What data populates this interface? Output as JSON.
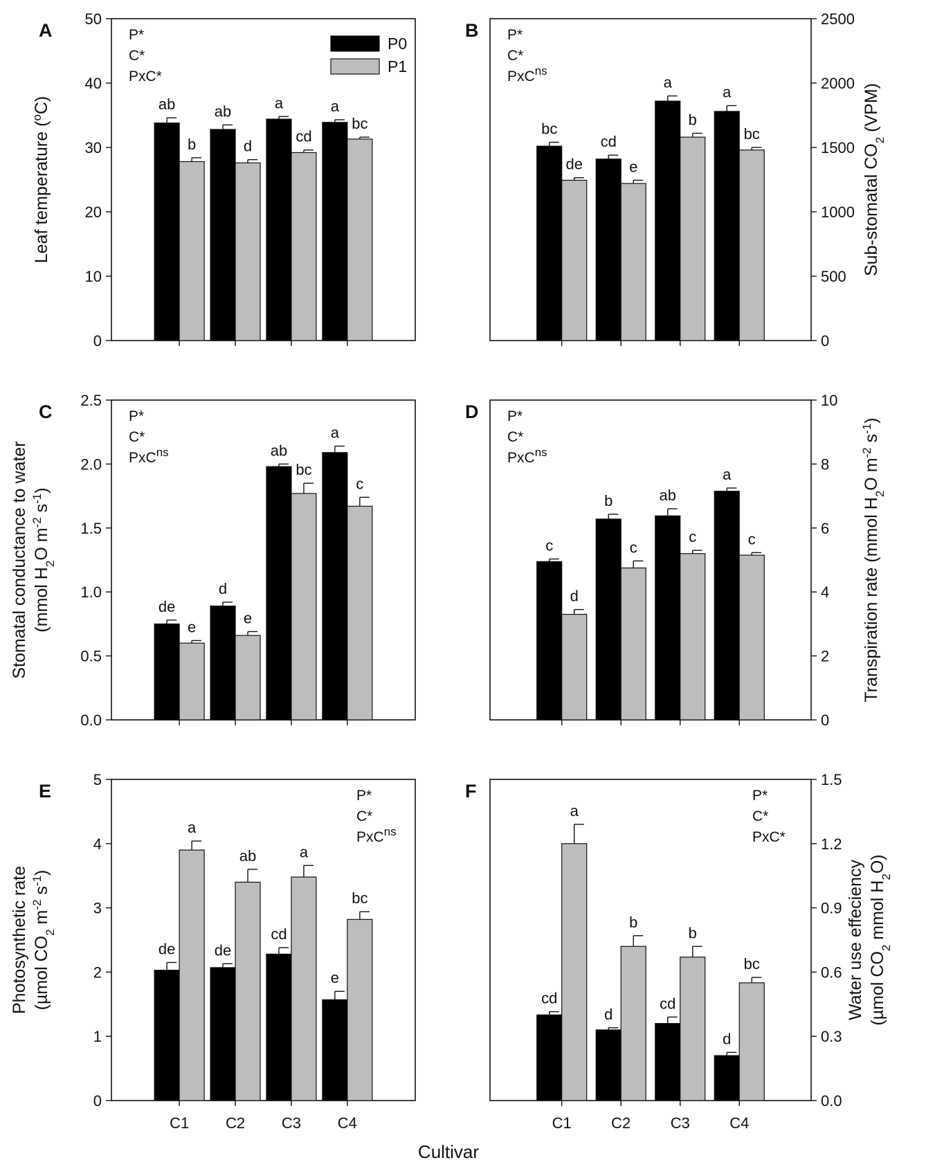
{
  "colors": {
    "P0": "#000000",
    "P1": "#bdbdbd"
  },
  "legend": [
    {
      "name": "P0",
      "color": "#000000"
    },
    {
      "name": "P1",
      "color": "#bdbdbd"
    }
  ],
  "common_xlabel": "Cultivar",
  "chart_data": [
    {
      "panel": "A",
      "type": "bar",
      "ylabel": "Leaf temperature (°C)",
      "ylabel_lines": 1,
      "yaxis_side": "left",
      "ylim": [
        0,
        50
      ],
      "yticks": [
        "0",
        "10",
        "20",
        "30",
        "40",
        "50"
      ],
      "categories": [
        "C1",
        "C2",
        "C3",
        "C4"
      ],
      "show_xticklabels": false,
      "stats": [
        "P*",
        "C*",
        "PxC*"
      ],
      "stats_position": "top-left",
      "legend_position": "top-center",
      "series": [
        {
          "name": "P0",
          "values": [
            33.8,
            32.8,
            34.4,
            33.9
          ],
          "errors": [
            0.8,
            0.7,
            0.4,
            0.4
          ],
          "labels": [
            "ab",
            "ab",
            "a",
            "a"
          ]
        },
        {
          "name": "P1",
          "values": [
            27.8,
            27.6,
            29.2,
            31.3
          ],
          "errors": [
            0.6,
            0.5,
            0.4,
            0.3
          ],
          "labels": [
            "b",
            "d",
            "cd",
            "bc"
          ]
        }
      ]
    },
    {
      "panel": "B",
      "type": "bar",
      "ylabel": "Sub-stomatal CO2 (VPM)",
      "ylabel_lines": 1,
      "yaxis_side": "right",
      "ylim": [
        0,
        2500
      ],
      "yticks": [
        "0",
        "500",
        "1000",
        "1500",
        "2000",
        "2500"
      ],
      "categories": [
        "C1",
        "C2",
        "C3",
        "C4"
      ],
      "show_xticklabels": false,
      "stats": [
        "P*",
        "C*",
        "PxCns"
      ],
      "stats_position": "top-left",
      "series": [
        {
          "name": "P0",
          "values": [
            1510,
            1410,
            1860,
            1780
          ],
          "errors": [
            30,
            30,
            40,
            45
          ],
          "labels": [
            "bc",
            "cd",
            "a",
            "a"
          ]
        },
        {
          "name": "P1",
          "values": [
            1245,
            1220,
            1580,
            1480
          ],
          "errors": [
            20,
            25,
            30,
            20
          ],
          "labels": [
            "de",
            "e",
            "b",
            "bc"
          ]
        }
      ]
    },
    {
      "panel": "C",
      "type": "bar",
      "ylabel": "Stomatal conductance to water (mmol H2O m-2 s-1)",
      "ylabel_lines": 2,
      "yaxis_side": "left",
      "ylim": [
        0,
        2.5
      ],
      "yticks": [
        "0.0",
        "0.5",
        "1.0",
        "1.5",
        "2.0",
        "2.5"
      ],
      "categories": [
        "C1",
        "C2",
        "C3",
        "C4"
      ],
      "show_xticklabels": false,
      "stats": [
        "P*",
        "C*",
        "PxCns"
      ],
      "stats_position": "top-left",
      "series": [
        {
          "name": "P0",
          "values": [
            0.75,
            0.89,
            1.98,
            2.09
          ],
          "errors": [
            0.03,
            0.03,
            0.02,
            0.05
          ],
          "labels": [
            "de",
            "d",
            "ab",
            "a"
          ]
        },
        {
          "name": "P1",
          "values": [
            0.6,
            0.66,
            1.77,
            1.67
          ],
          "errors": [
            0.02,
            0.03,
            0.08,
            0.07
          ],
          "labels": [
            "e",
            "e",
            "bc",
            "c"
          ]
        }
      ]
    },
    {
      "panel": "D",
      "type": "bar",
      "ylabel": "Transpiration rate (mmol H2O m-2 s-1)",
      "ylabel_lines": 1,
      "yaxis_side": "right",
      "ylim": [
        0,
        10
      ],
      "yticks": [
        "0",
        "2",
        "4",
        "6",
        "8",
        "10"
      ],
      "categories": [
        "C1",
        "C2",
        "C3",
        "C4"
      ],
      "show_xticklabels": false,
      "stats": [
        "P*",
        "C*",
        "PxCns"
      ],
      "stats_position": "top-left",
      "series": [
        {
          "name": "P0",
          "values": [
            4.95,
            6.28,
            6.38,
            7.15
          ],
          "errors": [
            0.08,
            0.15,
            0.22,
            0.1
          ],
          "labels": [
            "c",
            "b",
            "ab",
            "a"
          ]
        },
        {
          "name": "P1",
          "values": [
            3.3,
            4.75,
            5.2,
            5.15
          ],
          "errors": [
            0.15,
            0.22,
            0.1,
            0.08
          ],
          "labels": [
            "d",
            "c",
            "c",
            "c"
          ]
        }
      ]
    },
    {
      "panel": "E",
      "type": "bar",
      "ylabel": "Photosynthetic rate (µmol CO2 m-2 s-1)",
      "ylabel_lines": 2,
      "yaxis_side": "left",
      "ylim": [
        0,
        5
      ],
      "yticks": [
        "0",
        "1",
        "2",
        "3",
        "4",
        "5"
      ],
      "categories": [
        "C1",
        "C2",
        "C3",
        "C4"
      ],
      "show_xticklabels": true,
      "stats": [
        "P*",
        "C*",
        "PxCns"
      ],
      "stats_position": "top-right",
      "series": [
        {
          "name": "P0",
          "values": [
            2.03,
            2.07,
            2.28,
            1.57
          ],
          "errors": [
            0.12,
            0.06,
            0.1,
            0.13
          ],
          "labels": [
            "de",
            "de",
            "cd",
            "e"
          ]
        },
        {
          "name": "P1",
          "values": [
            3.9,
            3.4,
            3.48,
            2.82
          ],
          "errors": [
            0.14,
            0.2,
            0.18,
            0.12
          ],
          "labels": [
            "a",
            "ab",
            "a",
            "bc"
          ]
        }
      ]
    },
    {
      "panel": "F",
      "type": "bar",
      "ylabel": "Water use effeciency (µmol CO2 mmol H2O)",
      "ylabel_lines": 2,
      "yaxis_side": "right",
      "ylim": [
        0,
        1.5
      ],
      "yticks": [
        "0.0",
        "0.3",
        "0.6",
        "0.9",
        "1.2",
        "1.5"
      ],
      "categories": [
        "C1",
        "C2",
        "C3",
        "C4"
      ],
      "show_xticklabels": true,
      "stats": [
        "P*",
        "C*",
        "PxC*"
      ],
      "stats_position": "top-right",
      "series": [
        {
          "name": "P0",
          "values": [
            0.4,
            0.33,
            0.36,
            0.21
          ],
          "errors": [
            0.015,
            0.01,
            0.03,
            0.015
          ],
          "labels": [
            "cd",
            "d",
            "cd",
            "d"
          ]
        },
        {
          "name": "P1",
          "values": [
            1.2,
            0.72,
            0.67,
            0.55
          ],
          "errors": [
            0.09,
            0.05,
            0.05,
            0.025
          ],
          "labels": [
            "a",
            "b",
            "b",
            "bc"
          ]
        }
      ]
    }
  ]
}
